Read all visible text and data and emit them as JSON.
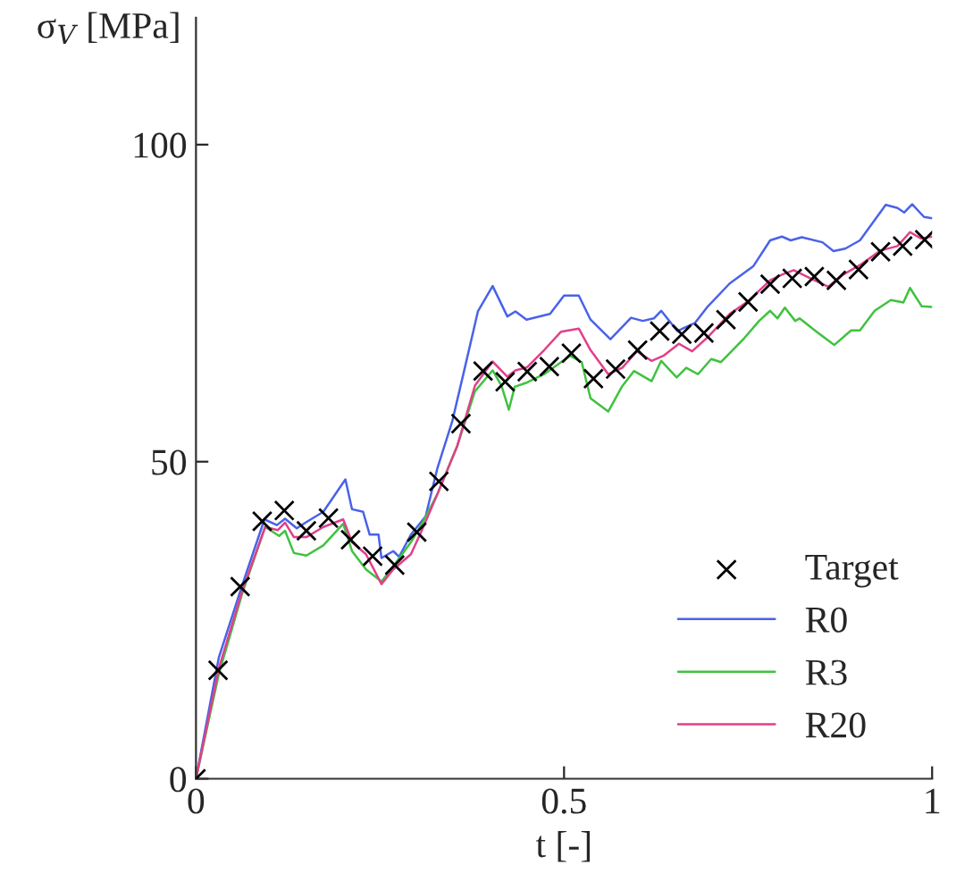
{
  "chart_data": {
    "type": "line",
    "ylabel": "σ$_{V}$ [MPa]",
    "xlabel": "t [-]",
    "xlim": [
      0,
      1
    ],
    "ylim": [
      0,
      120
    ],
    "xticks": [
      0,
      0.5,
      1
    ],
    "yticks": [
      0,
      50,
      100
    ],
    "grid": false,
    "legend": "bottom right",
    "series": [
      {
        "name": "Target",
        "type": "scatter",
        "marker": "cross",
        "color": "#000000",
        "x": [
          0,
          0.03,
          0.06,
          0.09,
          0.12,
          0.15,
          0.18,
          0.21,
          0.24,
          0.27,
          0.3,
          0.33,
          0.36,
          0.39,
          0.42,
          0.45,
          0.48,
          0.51,
          0.54,
          0.57,
          0.6,
          0.63,
          0.66,
          0.69,
          0.72,
          0.75,
          0.78,
          0.81,
          0.84,
          0.87,
          0.9,
          0.93,
          0.96,
          0.99
        ],
        "values": [
          0,
          17.1,
          30.3,
          40.6,
          42.3,
          39.1,
          41.1,
          37.7,
          35.1,
          33.7,
          38.9,
          46.9,
          56,
          64.3,
          62.6,
          64.2,
          65,
          67.1,
          63.1,
          64.6,
          67.6,
          70.6,
          70.1,
          70.3,
          72.4,
          75.2,
          78,
          78.9,
          79.2,
          78.6,
          80.3,
          83.1,
          84,
          85
        ]
      },
      {
        "name": "R0",
        "color": "#4a62e8",
        "x": [
          0,
          0.031,
          0.063,
          0.093,
          0.11,
          0.121,
          0.137,
          0.149,
          0.173,
          0.203,
          0.212,
          0.227,
          0.236,
          0.248,
          0.252,
          0.268,
          0.276,
          0.292,
          0.312,
          0.328,
          0.348,
          0.364,
          0.383,
          0.403,
          0.423,
          0.434,
          0.449,
          0.481,
          0.5,
          0.52,
          0.536,
          0.563,
          0.591,
          0.607,
          0.622,
          0.632,
          0.654,
          0.678,
          0.694,
          0.725,
          0.757,
          0.78,
          0.796,
          0.808,
          0.823,
          0.851,
          0.866,
          0.882,
          0.902,
          0.937,
          0.953,
          0.962,
          0.973,
          0.989,
          1.0
        ],
        "values": [
          0,
          19.1,
          30.6,
          40.9,
          40,
          41,
          39.5,
          40.4,
          42.1,
          47.2,
          42.5,
          42.1,
          38.5,
          38.5,
          34.8,
          35.9,
          35,
          38.5,
          41.4,
          49,
          56.3,
          64.2,
          73.7,
          77.7,
          72.9,
          73.7,
          72.4,
          73.3,
          76.2,
          76.2,
          72.4,
          69.3,
          72.7,
          72.2,
          72.6,
          73.8,
          70.6,
          71.9,
          74.3,
          78.1,
          80.8,
          84.9,
          85.5,
          84.9,
          85.4,
          84.6,
          83.2,
          83.6,
          84.9,
          90.5,
          90,
          89.3,
          90.6,
          88.6,
          88.4
        ]
      },
      {
        "name": "R3",
        "color": "#3fc23f",
        "x": [
          0,
          0.031,
          0.063,
          0.094,
          0.113,
          0.121,
          0.133,
          0.15,
          0.173,
          0.2,
          0.212,
          0.231,
          0.252,
          0.268,
          0.292,
          0.307,
          0.328,
          0.355,
          0.379,
          0.403,
          0.415,
          0.425,
          0.433,
          0.45,
          0.473,
          0.508,
          0.524,
          0.536,
          0.56,
          0.579,
          0.595,
          0.619,
          0.632,
          0.653,
          0.666,
          0.682,
          0.7,
          0.713,
          0.745,
          0.765,
          0.78,
          0.79,
          0.8,
          0.814,
          0.82,
          0.843,
          0.867,
          0.89,
          0.902,
          0.922,
          0.944,
          0.961,
          0.97,
          0.986,
          1.0
        ],
        "values": [
          0,
          16.5,
          29.3,
          39.7,
          38.3,
          39.1,
          35.6,
          35.2,
          36.8,
          40.2,
          35.9,
          33,
          31.1,
          33.5,
          37.3,
          40.2,
          44.9,
          52.5,
          61.1,
          64.4,
          62,
          58.2,
          61.8,
          62.5,
          63.8,
          66.7,
          65.7,
          60,
          57.9,
          61.9,
          64.3,
          62.7,
          65.9,
          63.3,
          64.8,
          63.8,
          66.2,
          65.7,
          69.5,
          72.2,
          73.8,
          72.6,
          74.3,
          72.2,
          72.6,
          70.5,
          68.4,
          70.7,
          70.7,
          73.8,
          75.5,
          75.1,
          77.4,
          74.5,
          74.4
        ]
      },
      {
        "name": "R20",
        "color": "#e0408a",
        "x": [
          0,
          0.031,
          0.063,
          0.094,
          0.111,
          0.121,
          0.133,
          0.15,
          0.173,
          0.2,
          0.212,
          0.231,
          0.252,
          0.268,
          0.292,
          0.307,
          0.328,
          0.355,
          0.379,
          0.403,
          0.423,
          0.434,
          0.45,
          0.473,
          0.496,
          0.52,
          0.536,
          0.56,
          0.579,
          0.599,
          0.619,
          0.635,
          0.656,
          0.674,
          0.694,
          0.725,
          0.749,
          0.78,
          0.796,
          0.812,
          0.835,
          0.859,
          0.879,
          0.902,
          0.93,
          0.953,
          0.97,
          0.985,
          1.0
        ],
        "values": [
          0,
          17.4,
          29.7,
          39.7,
          39.2,
          40.4,
          38.1,
          38.1,
          39.7,
          40.9,
          37.3,
          35.4,
          30.7,
          33,
          35.4,
          39.2,
          44.9,
          52.5,
          62,
          65.8,
          63.4,
          64.4,
          64.9,
          67.6,
          70.5,
          71,
          67.6,
          63.8,
          64.8,
          67.4,
          65.9,
          66.7,
          68.6,
          67.4,
          69.5,
          73.3,
          75.2,
          78.6,
          79.5,
          80.2,
          78.9,
          77.6,
          79.5,
          81,
          83.3,
          84,
          86.2,
          85.2,
          85.5
        ]
      }
    ]
  }
}
